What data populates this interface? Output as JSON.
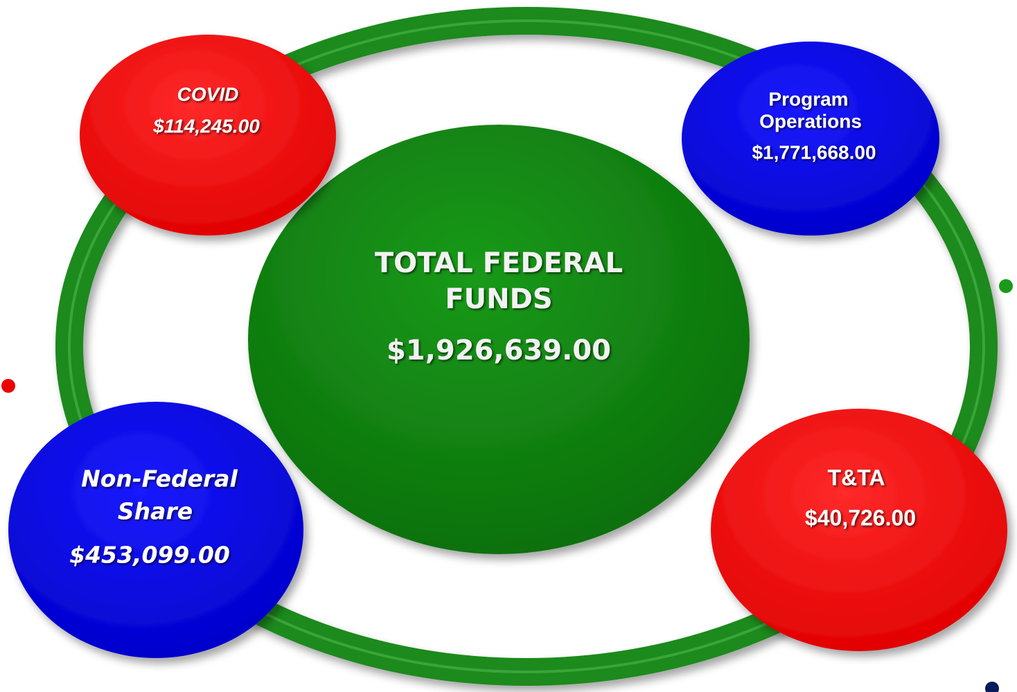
{
  "center": {
    "label_lines": [
      "TOTAL FEDERAL",
      "FUNDS"
    ],
    "amount": "$1,926,639.00"
  },
  "nodes": [
    {
      "label_lines": [
        "COVID"
      ],
      "amount": "$114,245.00"
    },
    {
      "label_lines": [
        "Program",
        "Operations"
      ],
      "amount": "$1,771,668.00"
    },
    {
      "label_lines": [
        "Non-Federal",
        "Share"
      ],
      "amount": "$453,099.00"
    },
    {
      "label_lines": [
        "T&TA"
      ],
      "amount": "$40,726.00"
    }
  ]
}
